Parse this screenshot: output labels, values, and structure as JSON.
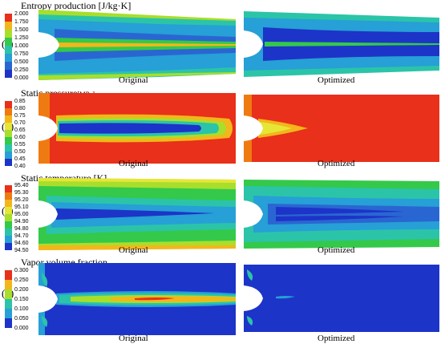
{
  "panels": [
    {
      "label": "(a)",
      "title": "Entropy production",
      "unit": "[J/kg·K]",
      "ticks": [
        "2.000",
        "1.750",
        "1.500",
        "1.250",
        "1.000",
        "0.750",
        "0.500",
        "0.250",
        "0.000"
      ],
      "caption_left": "Original",
      "caption_right": "Optimized"
    },
    {
      "label": "(b)",
      "title": "Static pressure",
      "unit": "[MPa]",
      "ticks": [
        "0.85",
        "0.80",
        "0.75",
        "0.70",
        "0.65",
        "0.60",
        "0.55",
        "0.50",
        "0.45",
        "0.40"
      ],
      "caption_left": "Original",
      "caption_right": "Optimized"
    },
    {
      "label": "(c)",
      "title": "Static temperature",
      "unit": "[K]",
      "ticks": [
        "95.40",
        "95.30",
        "95.20",
        "95.10",
        "95.00",
        "94.90",
        "94.80",
        "94.70",
        "94.60",
        "94.50"
      ],
      "caption_left": "Original",
      "caption_right": "Optimized"
    },
    {
      "label": "(d)",
      "title": "Vapor volume fraction",
      "unit": "",
      "ticks": [
        "0.300",
        "0.250",
        "0.200",
        "0.150",
        "0.100",
        "0.050",
        "0.000"
      ],
      "caption_left": "Original",
      "caption_right": "Optimized"
    }
  ],
  "colormap": [
    "#e8301a",
    "#f07a12",
    "#f3b61b",
    "#e6e637",
    "#a8de2c",
    "#34c94a",
    "#2bc4a9",
    "#26a0d6",
    "#2a66d2",
    "#1d34c8"
  ]
}
